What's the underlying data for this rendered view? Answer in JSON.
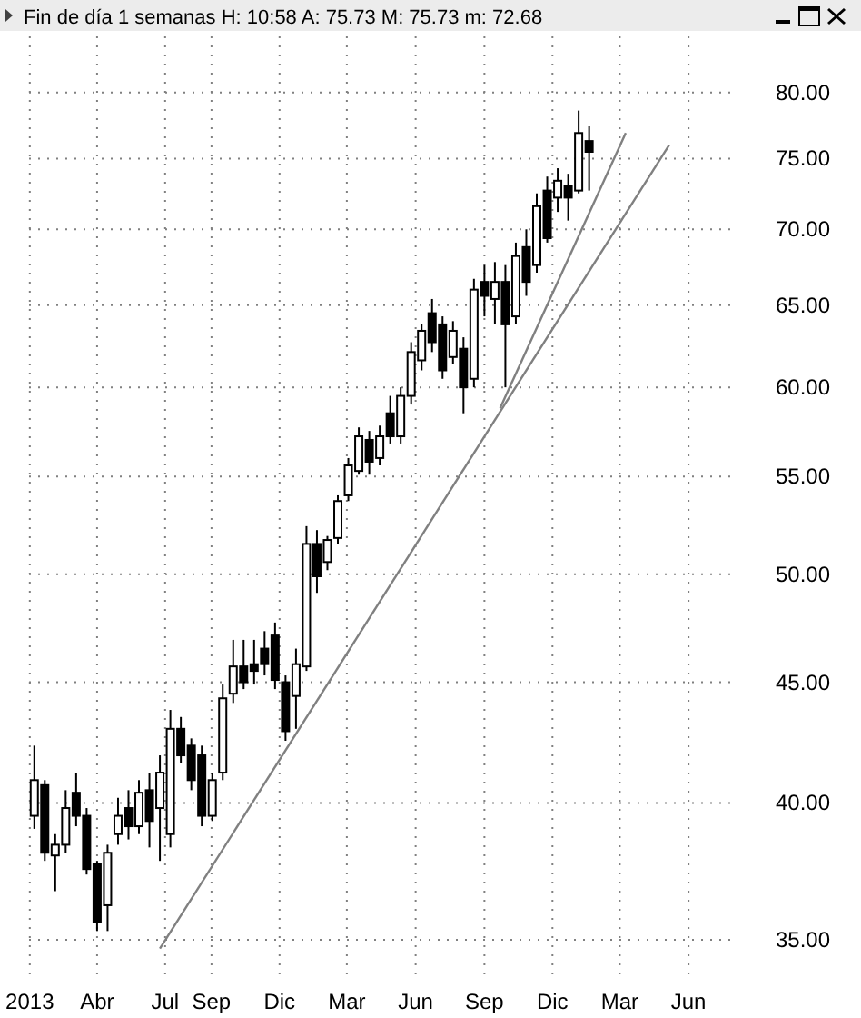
{
  "chart_data": {
    "type": "candlestick",
    "title": "Fin de día 1 semanas  H: 10:58  A: 75.73  M: 75.73  m: 72.68",
    "color": "#000000",
    "x": [
      "2013-01-07",
      "2013-01-21",
      "2013-02-04",
      "2013-02-18",
      "2013-03-04",
      "2013-03-18",
      "2013-04-01",
      "2013-04-15",
      "2013-04-29",
      "2013-05-13",
      "2013-05-27",
      "2013-06-10",
      "2013-06-24",
      "2013-07-08",
      "2013-07-22",
      "2013-08-05",
      "2013-08-19",
      "2013-09-02",
      "2013-09-16",
      "2013-09-30",
      "2013-10-14",
      "2013-10-28",
      "2013-11-11",
      "2013-11-25",
      "2013-12-09",
      "2013-12-23",
      "2014-01-06",
      "2014-01-20",
      "2014-02-03",
      "2014-02-17",
      "2014-03-03",
      "2014-03-17",
      "2014-03-31",
      "2014-04-14",
      "2014-04-28",
      "2014-05-12",
      "2014-05-26",
      "2014-06-09",
      "2014-06-23",
      "2014-07-07",
      "2014-07-21",
      "2014-08-04",
      "2014-08-18",
      "2014-09-01",
      "2014-09-15",
      "2014-09-29",
      "2014-10-13",
      "2014-10-27",
      "2014-11-10",
      "2014-11-24",
      "2014-12-08",
      "2014-12-22",
      "2015-01-05",
      "2015-01-19"
    ],
    "ohlc": [
      [
        39.5,
        42.3,
        39.0,
        40.9
      ],
      [
        40.7,
        40.9,
        37.8,
        38.1
      ],
      [
        38.0,
        38.8,
        36.7,
        38.4
      ],
      [
        38.4,
        40.5,
        38.1,
        39.8
      ],
      [
        40.4,
        41.2,
        39.1,
        39.5
      ],
      [
        39.5,
        39.8,
        37.3,
        37.5
      ],
      [
        37.7,
        37.8,
        35.3,
        35.6
      ],
      [
        36.2,
        38.4,
        35.3,
        38.1
      ],
      [
        38.8,
        40.2,
        38.4,
        39.5
      ],
      [
        39.8,
        40.5,
        38.6,
        39.1
      ],
      [
        39.1,
        40.9,
        38.8,
        40.4
      ],
      [
        40.5,
        41.2,
        38.3,
        39.3
      ],
      [
        39.8,
        41.9,
        37.8,
        41.2
      ],
      [
        38.8,
        43.8,
        38.3,
        43.0
      ],
      [
        43.0,
        43.5,
        41.6,
        41.9
      ],
      [
        42.3,
        42.6,
        40.5,
        40.9
      ],
      [
        41.9,
        42.3,
        39.1,
        39.5
      ],
      [
        39.5,
        41.2,
        39.3,
        40.9
      ],
      [
        41.2,
        44.9,
        40.9,
        44.3
      ],
      [
        44.5,
        46.9,
        44.1,
        45.7
      ],
      [
        45.7,
        46.9,
        44.7,
        45.0
      ],
      [
        45.8,
        46.9,
        44.9,
        45.5
      ],
      [
        46.5,
        47.3,
        45.3,
        45.8
      ],
      [
        47.1,
        47.7,
        44.7,
        45.1
      ],
      [
        45.0,
        45.3,
        42.5,
        42.9
      ],
      [
        44.4,
        46.5,
        43.0,
        45.8
      ],
      [
        45.7,
        52.4,
        45.5,
        51.5
      ],
      [
        51.5,
        52.2,
        49.1,
        49.9
      ],
      [
        50.6,
        51.9,
        50.2,
        51.7
      ],
      [
        51.8,
        54.0,
        51.5,
        53.7
      ],
      [
        54.0,
        56.0,
        53.7,
        55.6
      ],
      [
        55.3,
        57.7,
        55.1,
        57.2
      ],
      [
        57.0,
        57.5,
        55.1,
        55.8
      ],
      [
        56.0,
        57.8,
        55.6,
        57.2
      ],
      [
        58.5,
        59.5,
        56.8,
        57.2
      ],
      [
        57.2,
        60.0,
        56.8,
        59.5
      ],
      [
        59.5,
        62.7,
        59.0,
        62.1
      ],
      [
        61.6,
        63.8,
        61.0,
        63.4
      ],
      [
        64.5,
        65.4,
        62.1,
        62.7
      ],
      [
        63.8,
        64.3,
        60.5,
        61.0
      ],
      [
        61.8,
        64.0,
        61.4,
        63.4
      ],
      [
        62.3,
        63.0,
        58.5,
        60.0
      ],
      [
        60.5,
        66.7,
        60.0,
        66.0
      ],
      [
        66.5,
        67.6,
        64.3,
        65.6
      ],
      [
        65.4,
        67.8,
        63.8,
        66.5
      ],
      [
        66.5,
        67.6,
        60.0,
        63.8
      ],
      [
        64.3,
        69.1,
        63.8,
        68.2
      ],
      [
        68.8,
        70.0,
        65.6,
        66.5
      ],
      [
        67.6,
        72.5,
        67.1,
        71.6
      ],
      [
        72.7,
        73.7,
        69.1,
        69.4
      ],
      [
        72.2,
        74.3,
        71.2,
        73.4
      ],
      [
        73.0,
        73.9,
        70.6,
        72.2
      ],
      [
        72.7,
        78.6,
        72.5,
        76.9
      ],
      [
        76.3,
        77.4,
        72.7,
        75.5
      ]
    ],
    "series": [
      {
        "type": "line",
        "color": "#808080",
        "x": [
          "2013-06-24",
          "2015-05-06"
        ],
        "values": [
          34.7,
          76.0
        ]
      },
      {
        "type": "line",
        "color": "#808080",
        "x": [
          "2014-09-22",
          "2015-03-09"
        ],
        "values": [
          58.8,
          76.9
        ]
      }
    ],
    "log": true,
    "grid": true,
    "xlim": [
      "2012-12-31",
      "2015-08-03"
    ],
    "xticks": [
      {
        "value": "2013-01-01",
        "label": "2013"
      },
      {
        "value": "2013-04-01",
        "label": "Abr"
      },
      {
        "value": "2013-07-01",
        "label": "Jul"
      },
      {
        "value": "2013-09-01",
        "label": "Sep"
      },
      {
        "value": "2013-12-01",
        "label": "Dic"
      },
      {
        "value": "2014-03-01",
        "label": "Mar"
      },
      {
        "value": "2014-06-01",
        "label": "Jun"
      },
      {
        "value": "2014-09-01",
        "label": "Sep"
      },
      {
        "value": "2014-12-01",
        "label": "Dic"
      },
      {
        "value": "2015-03-01",
        "label": "Mar"
      },
      {
        "value": "2015-06-01",
        "label": "Jun"
      }
    ],
    "ylim": [
      33.6,
      84.5
    ],
    "yticks": [
      {
        "value": 35,
        "label": "35.00"
      },
      {
        "value": 40,
        "label": "40.00"
      },
      {
        "value": 45,
        "label": "45.00"
      },
      {
        "value": 50,
        "label": "50.00"
      },
      {
        "value": 55,
        "label": "55.00"
      },
      {
        "value": 60,
        "label": "60.00"
      },
      {
        "value": 65,
        "label": "65.00"
      },
      {
        "value": 70,
        "label": "70.00"
      },
      {
        "value": 75,
        "label": "75.00"
      },
      {
        "value": 80,
        "label": "80.00"
      }
    ]
  }
}
